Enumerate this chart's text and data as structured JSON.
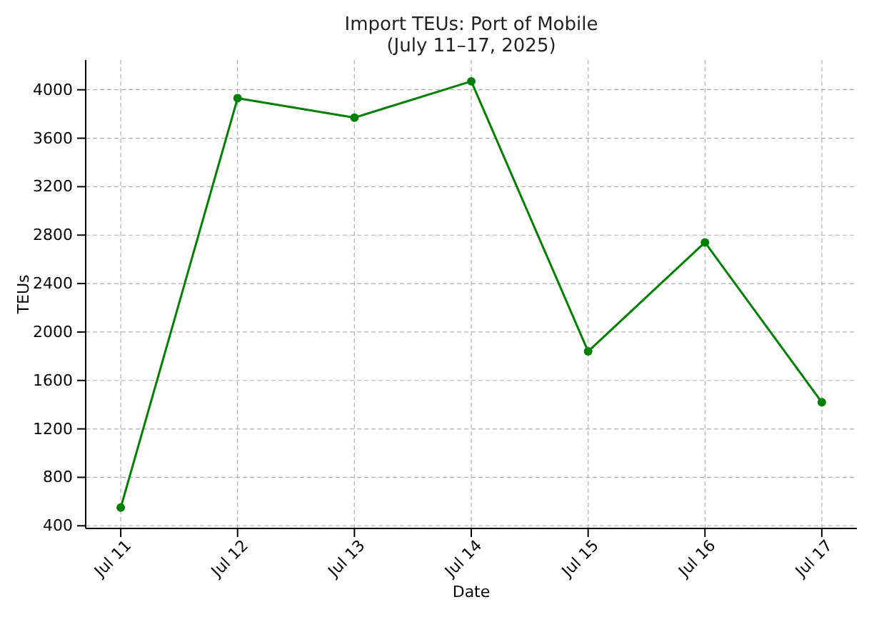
{
  "chart_data": {
    "type": "line",
    "title": "Import TEUs: Port of Mobile\n(July 11–17, 2025)",
    "xlabel": "Date",
    "ylabel": "TEUs",
    "categories": [
      "Jul 11",
      "Jul 12",
      "Jul 13",
      "Jul 14",
      "Jul 15",
      "Jul 16",
      "Jul 17"
    ],
    "series": [
      {
        "color": "#008000",
        "values": [
          550,
          3930,
          3770,
          4070,
          1840,
          2740,
          1420
        ]
      }
    ],
    "ylim": [
      378,
      4246
    ],
    "yticks": [
      400,
      800,
      1200,
      1600,
      2000,
      2400,
      2800,
      3200,
      3600,
      4000
    ],
    "grid": true,
    "marker": "circle",
    "line_style": "solid"
  }
}
